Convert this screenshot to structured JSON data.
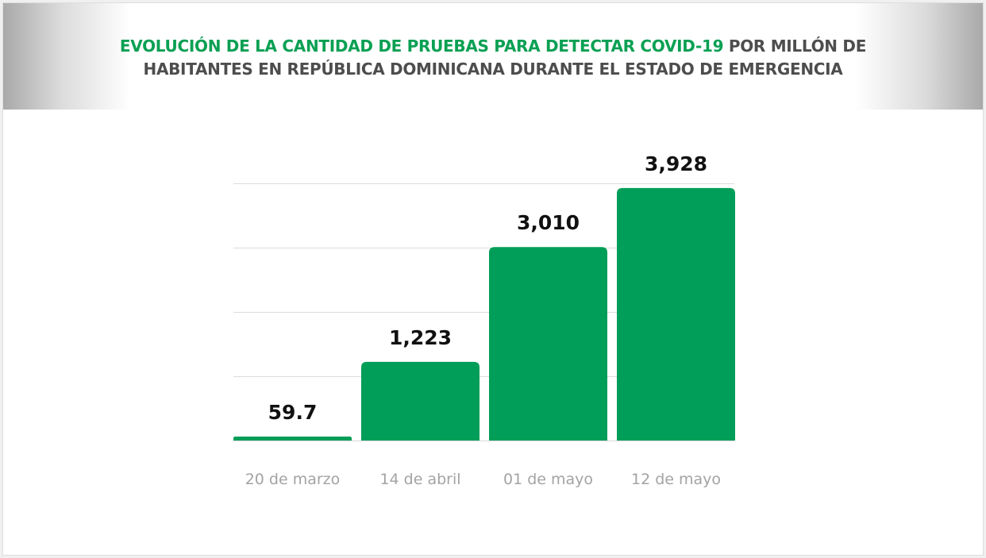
{
  "header": {
    "title_highlight": "EVOLUCIÓN DE LA CANTIDAD DE PRUEBAS PARA DETECTAR COVID-19",
    "title_rest": " POR MILLÓN DE HABITANTES EN REPÚBLICA DOMINICANA DURANTE EL ESTADO DE EMERGENCIA"
  },
  "colors": {
    "bar": "#009e58",
    "title_highlight": "#0aa053",
    "title_rest": "#4d4d4d"
  },
  "chart_data": {
    "type": "bar",
    "title": "EVOLUCIÓN DE LA CANTIDAD DE PRUEBAS PARA DETECTAR COVID-19 POR MILLÓN DE HABITANTES EN REPÚBLICA DOMINICANA DURANTE EL ESTADO DE EMERGENCIA",
    "categories": [
      "20 de marzo",
      "14 de abril",
      "01 de mayo",
      "12 de mayo"
    ],
    "values": [
      59.7,
      1223,
      3010,
      3928
    ],
    "value_labels": [
      "59.7",
      "1,223",
      "3,010",
      "3,928"
    ],
    "xlabel": "",
    "ylabel": "",
    "ylim": [
      0,
      4000
    ],
    "grid": true,
    "gridlines": [
      0,
      1000,
      2000,
      3000,
      4000
    ],
    "legend": "none"
  }
}
